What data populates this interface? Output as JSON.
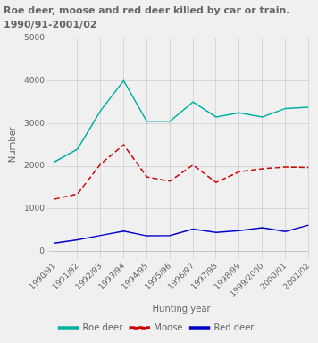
{
  "chart_data": {
    "type": "line",
    "title": "Roe deer, moose and red deer killed by car or train.",
    "subtitle": "1990/91-2001/02",
    "x_label": "Hunting year",
    "y_label": "Number",
    "categories": [
      "1990/91",
      "1991/92",
      "1992/93",
      "1993/94",
      "1994/95",
      "1995/96",
      "1996/97",
      "1997/98",
      "1998/99",
      "1999/2000",
      "2000/01",
      "2001/02"
    ],
    "series": [
      {
        "name": "Roe deer",
        "color": "#00b0a0",
        "line_style": "solid",
        "values": [
          2100,
          2400,
          3300,
          4000,
          3050,
          3050,
          3500,
          3150,
          3250,
          3150,
          3350,
          3380
        ]
      },
      {
        "name": "Moose",
        "color": "#cc0000",
        "line_style": "dashed",
        "values": [
          1230,
          1350,
          2050,
          2500,
          1750,
          1650,
          2030,
          1620,
          1870,
          1940,
          1980,
          1970
        ]
      },
      {
        "name": "Red deer",
        "color": "#0000cc",
        "line_style": "solid",
        "values": [
          200,
          280,
          380,
          480,
          370,
          380,
          530,
          450,
          490,
          560,
          470,
          620
        ]
      }
    ],
    "ylim": [
      0,
      5000
    ],
    "yticks": [
      0,
      1000,
      2000,
      3000,
      4000,
      5000
    ],
    "grid": true,
    "legend": "bottom"
  }
}
